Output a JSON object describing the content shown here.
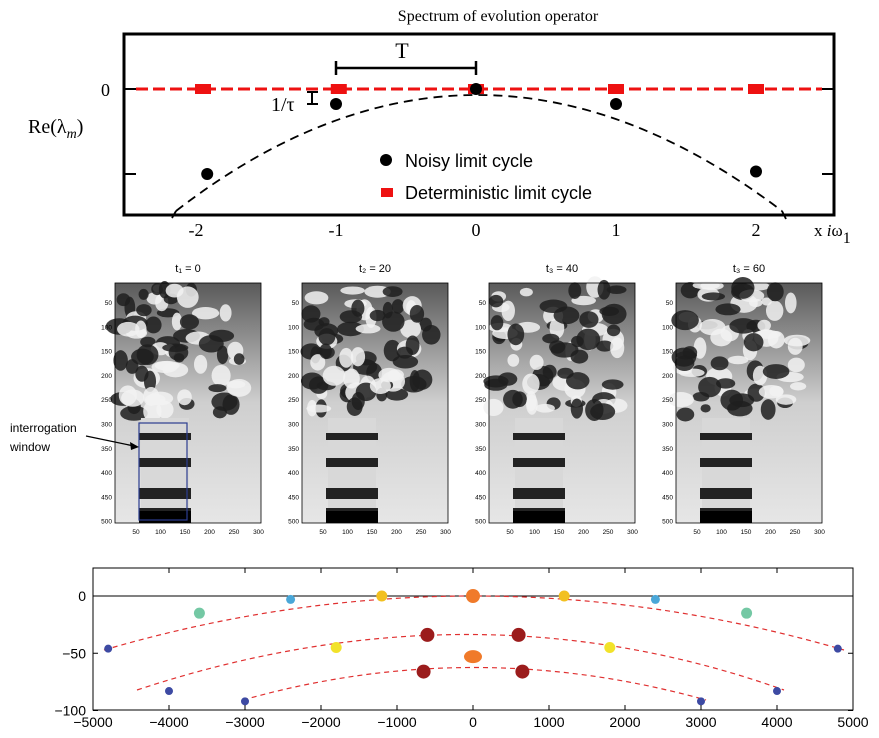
{
  "chart_data": [
    {
      "type": "scatter",
      "title": "Spectrum of evolution operator",
      "ylabel_main": "Re(λ",
      "ylabel_sub": "m",
      "ylabel_close": ")",
      "xlabel_prefix": "x ",
      "xlabel_i": "i",
      "xlabel_omega": "ω",
      "xlabel_sub": "1",
      "x_ticks": [
        "-2",
        "-1",
        "0",
        "1",
        "2"
      ],
      "y_tick_labels": [
        "0"
      ],
      "annotation_T": "T",
      "annotation_tau": "1/τ",
      "xlim": [
        -2.4,
        2.4
      ],
      "series": [
        {
          "name": "Noisy limit cycle",
          "color": "#000000",
          "points": [
            [
              -1.92,
              -0.34
            ],
            [
              -1.0,
              -0.06
            ],
            [
              0.0,
              0.0
            ],
            [
              1.0,
              -0.06
            ],
            [
              2.0,
              -0.33
            ]
          ]
        },
        {
          "name": "Deterministic limit cycle",
          "color": "#ee1111",
          "points": [
            [
              -1.95,
              0
            ],
            [
              -0.98,
              0
            ],
            [
              0.0,
              0
            ],
            [
              1.0,
              0
            ],
            [
              2.0,
              0
            ]
          ]
        }
      ]
    },
    {
      "type": "heatmap",
      "panels": [
        {
          "label": "t₁ = 0"
        },
        {
          "label": "t₂ = 20"
        },
        {
          "label": "t₃ = 40"
        },
        {
          "label": "t₃ = 60"
        }
      ],
      "x_ticks": [
        "50",
        "100",
        "150",
        "200",
        "250",
        "300"
      ],
      "y_ticks": [
        "50",
        "100",
        "150",
        "200",
        "250",
        "300",
        "350",
        "400",
        "450",
        "500"
      ],
      "annotation": [
        "interrogation",
        "window"
      ],
      "window_color": "#2b3d8f"
    },
    {
      "type": "scatter",
      "xlim": [
        -5000,
        5000
      ],
      "ylim": [
        -100,
        10
      ],
      "x_ticks": [
        "−5000",
        "−4000",
        "−3000",
        "−2000",
        "−1000",
        "0",
        "1000",
        "2000",
        "3000",
        "4000",
        "5000"
      ],
      "y_ticks": [
        "0",
        "−50",
        "−100"
      ],
      "arcs_color": "#e03030",
      "points": [
        {
          "x": 0,
          "y": 0,
          "color": "#f07a2a"
        },
        {
          "x": -1200,
          "y": 0,
          "color": "#f2c020"
        },
        {
          "x": 1200,
          "y": 0,
          "color": "#f2c020"
        },
        {
          "x": -2400,
          "y": -3,
          "color": "#4aa7d8"
        },
        {
          "x": 2400,
          "y": -3,
          "color": "#4aa7d8"
        },
        {
          "x": -3600,
          "y": -15,
          "color": "#74c8a4"
        },
        {
          "x": 3600,
          "y": -15,
          "color": "#74c8a4"
        },
        {
          "x": -4800,
          "y": -46,
          "color": "#3d4aa3"
        },
        {
          "x": 4800,
          "y": -46,
          "color": "#3d4aa3"
        },
        {
          "x": -600,
          "y": -34,
          "color": "#9b1c1c"
        },
        {
          "x": 600,
          "y": -34,
          "color": "#9b1c1c"
        },
        {
          "x": -1800,
          "y": -45,
          "color": "#f2e22a"
        },
        {
          "x": 1800,
          "y": -45,
          "color": "#f2e22a"
        },
        {
          "x": 0,
          "y": -53,
          "color": "#f07a2a"
        },
        {
          "x": -4000,
          "y": -83,
          "color": "#3d4aa3"
        },
        {
          "x": 4000,
          "y": -83,
          "color": "#3d4aa3"
        },
        {
          "x": -650,
          "y": -66,
          "color": "#9b1c1c"
        },
        {
          "x": 650,
          "y": -66,
          "color": "#9b1c1c"
        },
        {
          "x": -3000,
          "y": -92,
          "color": "#3d4aa3"
        },
        {
          "x": 3000,
          "y": -92,
          "color": "#3d4aa3"
        }
      ]
    }
  ]
}
